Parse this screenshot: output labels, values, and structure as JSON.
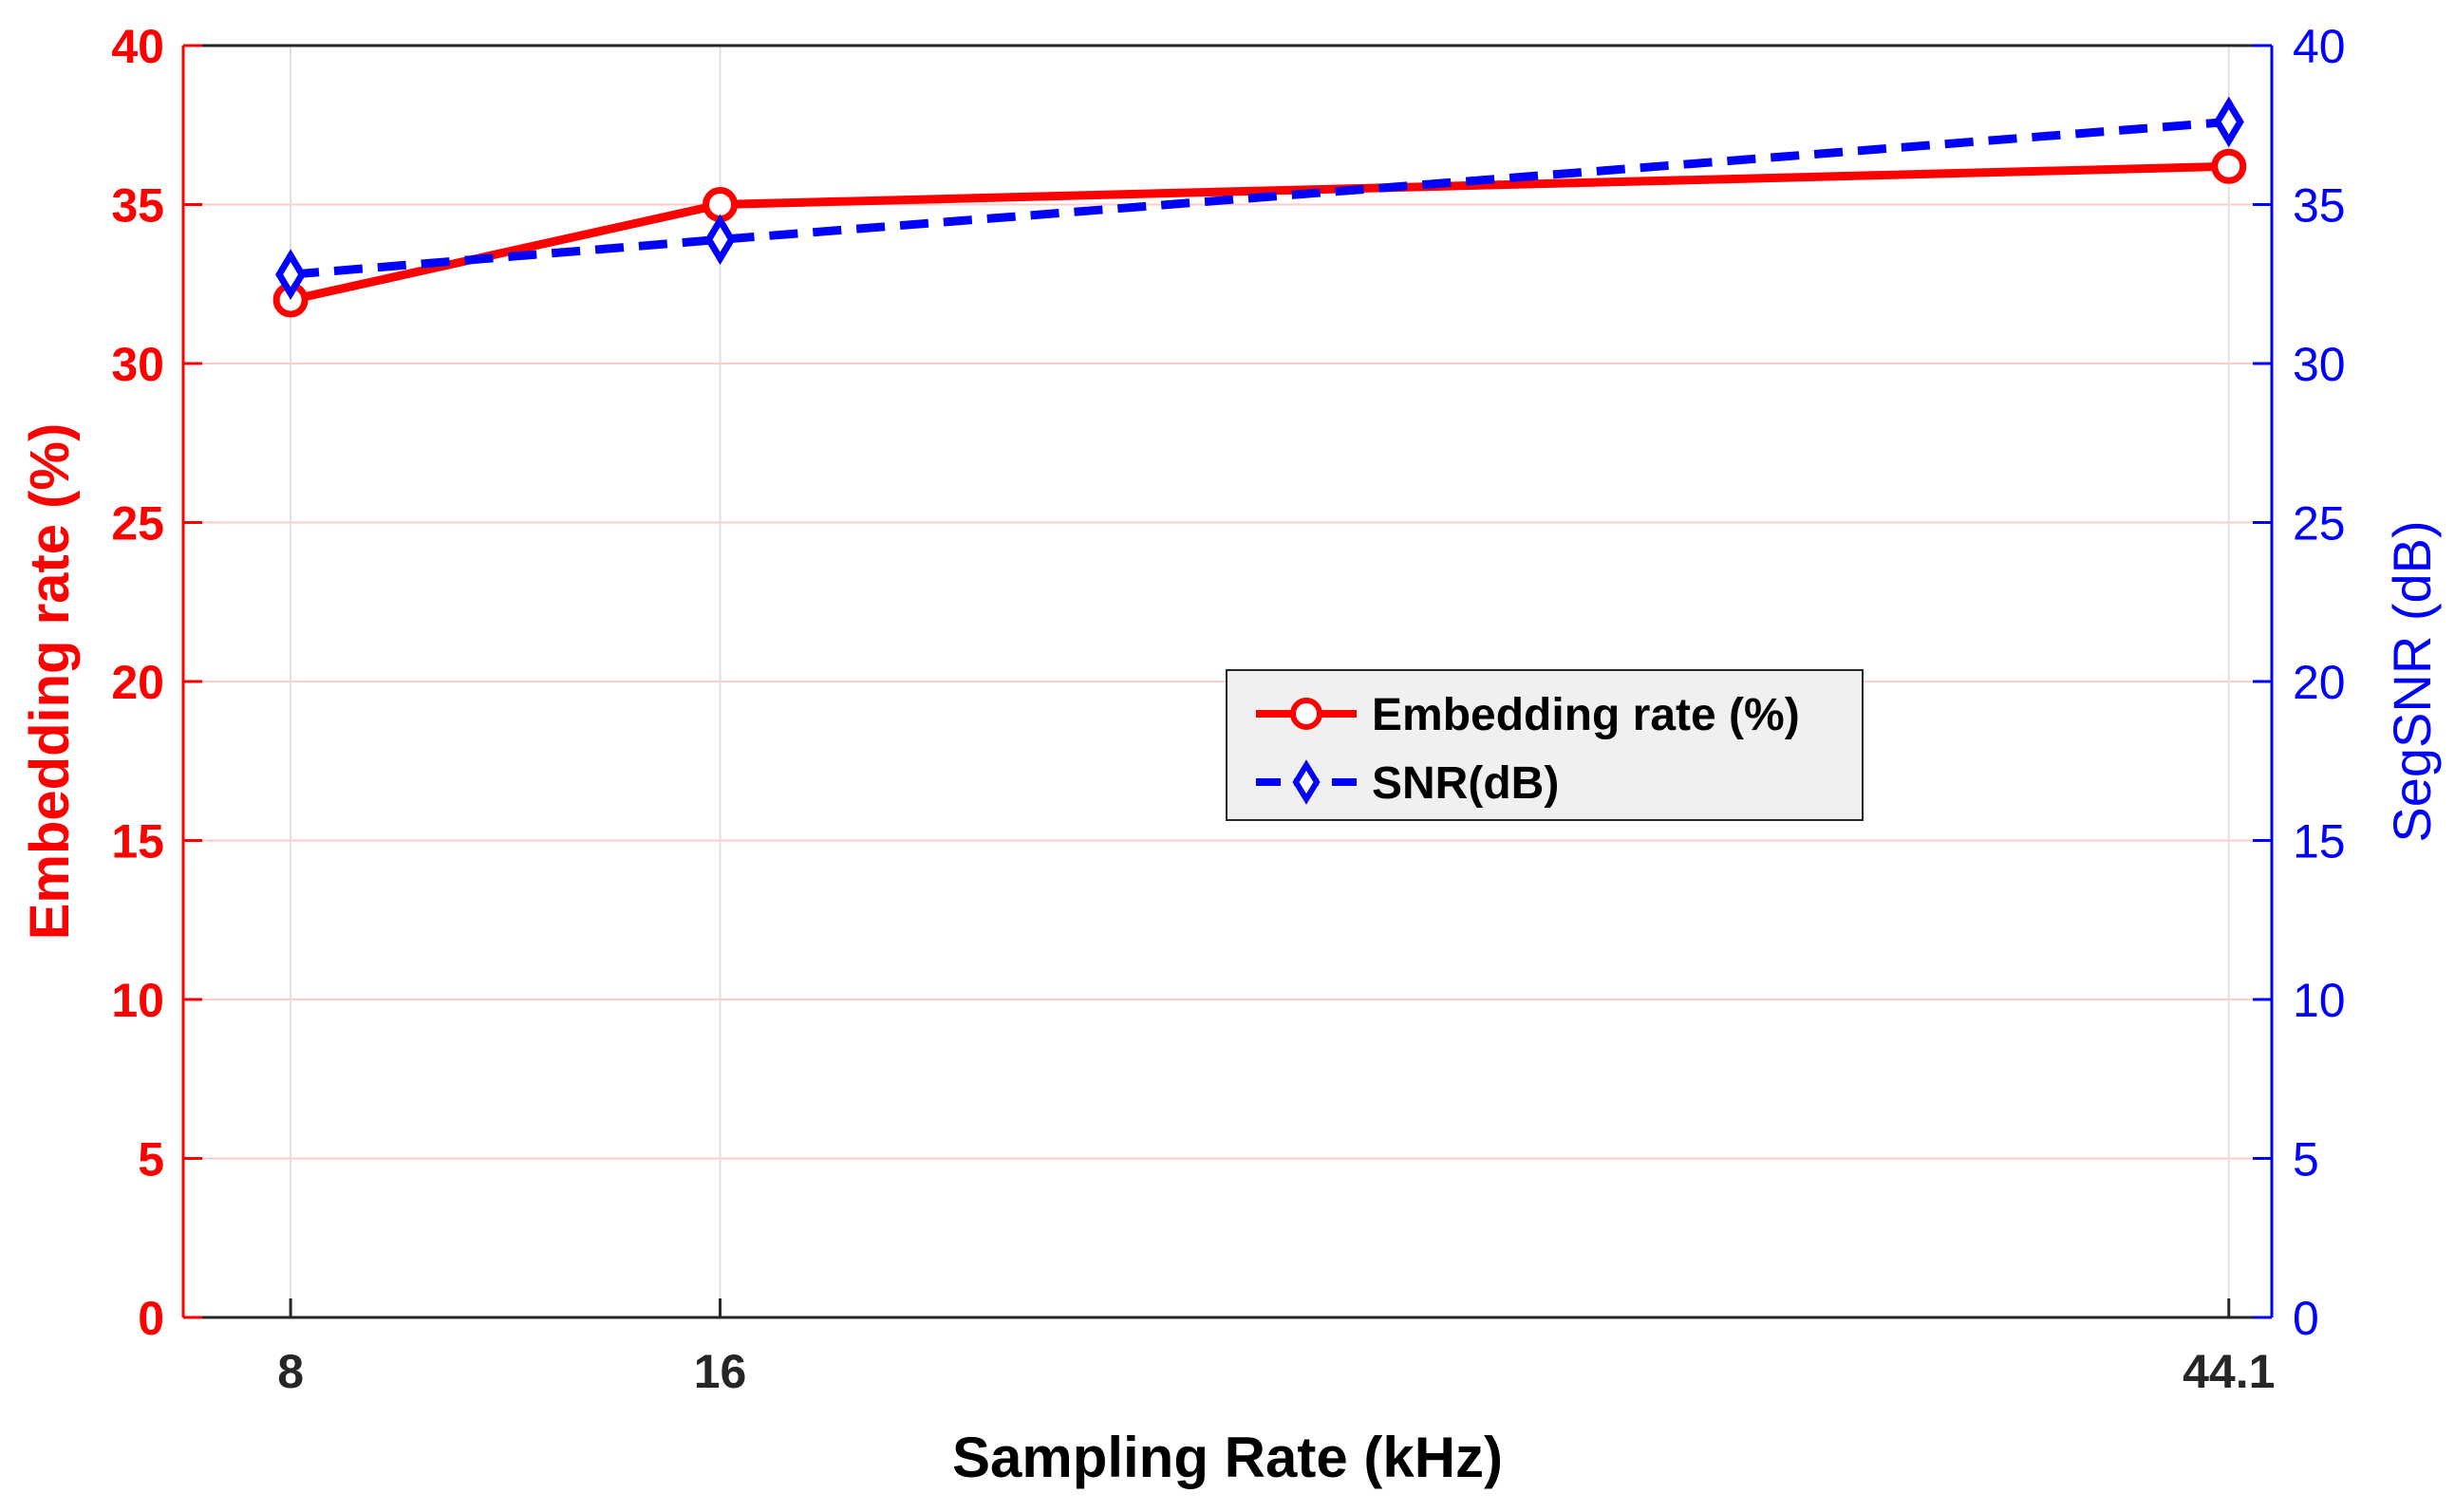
{
  "chart_data": {
    "type": "line",
    "x": [
      8,
      16,
      44.1
    ],
    "x_tick_labels": [
      "8",
      "16",
      "44.1"
    ],
    "xlabel": "Sampling Rate (kHz)",
    "ylabel_left": "Embedding rate (%)",
    "ylabel_right": "SegSNR (dB)",
    "ylim_left": [
      0,
      40
    ],
    "ylim_right": [
      0,
      40
    ],
    "y_ticks_left": [
      "0",
      "5",
      "10",
      "15",
      "20",
      "25",
      "30",
      "35",
      "40"
    ],
    "y_ticks_right": [
      "0",
      "5",
      "10",
      "15",
      "20",
      "25",
      "30",
      "35",
      "40"
    ],
    "grid": true,
    "legend_position": "center-right",
    "series": [
      {
        "name": "Embedding rate (%)",
        "axis": "left",
        "values": [
          32.0,
          35.0,
          36.2
        ],
        "color": "#ff0000",
        "marker": "circle",
        "line_style": "solid"
      },
      {
        "name": "SNR(dB)",
        "axis": "right",
        "values": [
          32.8,
          33.9,
          37.6
        ],
        "color": "#0000ff",
        "marker": "diamond",
        "line_style": "dashed"
      }
    ]
  }
}
